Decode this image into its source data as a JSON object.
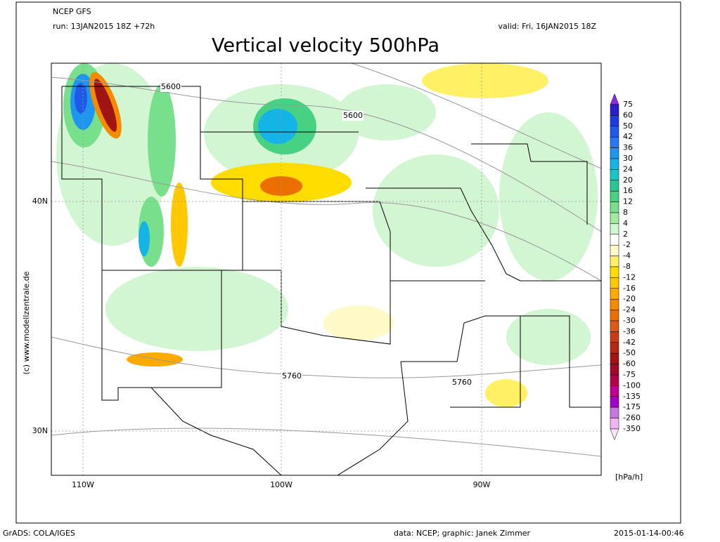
{
  "header": {
    "model": "NCEP GFS",
    "run": "run: 13JAN2015 18Z +72h",
    "valid": "valid: Fri, 16JAN2015 18Z",
    "title": "Vertical velocity 500hPa"
  },
  "map": {
    "lon_labels": [
      "110W",
      "100W",
      "90W"
    ],
    "lat_labels": [
      "40N",
      "30N"
    ],
    "contour_labels": [
      5600,
      5600,
      5760,
      5760
    ],
    "credit": "(c) www.modellzentrale.de"
  },
  "colorbar": {
    "levels": [
      75,
      60,
      50,
      42,
      36,
      30,
      24,
      20,
      16,
      12,
      8,
      4,
      2,
      -2,
      -4,
      -8,
      -12,
      -16,
      -20,
      -24,
      -30,
      -36,
      -42,
      -50,
      -60,
      -75,
      -100,
      -135,
      -175,
      -260,
      -350
    ],
    "colors": [
      "#8a2be2",
      "#2a1cc8",
      "#1e3cdc",
      "#1e5ae6",
      "#2878f0",
      "#1e96f0",
      "#14b4e6",
      "#14c8c8",
      "#28c896",
      "#46d282",
      "#78e08c",
      "#a0eba0",
      "#d2f5d2",
      "#ffffff",
      "#fffac8",
      "#fff064",
      "#ffdc00",
      "#ffc800",
      "#ffaa00",
      "#f58c00",
      "#eb6e00",
      "#dc5a14",
      "#c83c14",
      "#b42814",
      "#a01414",
      "#a00a28",
      "#b4004b",
      "#be0096",
      "#a000c8",
      "#c878dc",
      "#f0b4f0",
      "#fae6fa"
    ],
    "unit": "[hPa/h]"
  },
  "footer": {
    "software": "GrADS: COLA/IGES",
    "source": "data: NCEP; graphic: Janek Zimmer",
    "timestamp": "2015-01-14-00:46"
  }
}
